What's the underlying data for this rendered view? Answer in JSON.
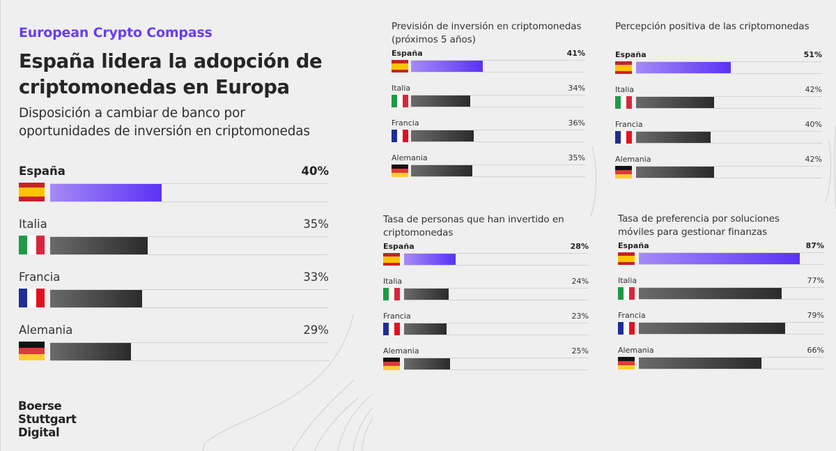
{
  "header": {
    "brand": "European Crypto Compass",
    "headline_line1": "España lidera la adopción de",
    "headline_line2": "criptomonedas en Europa",
    "subtitle_line1": "Disposición a cambiar de banco por",
    "subtitle_line2": "oportunidades de inversión en criptomonedas"
  },
  "logo": {
    "line1": "Boerse",
    "line2": "Stuttgart",
    "line3": "Digital"
  },
  "colors": {
    "brand": "#6a3cf0",
    "highlight_bar_start": "#a58af6",
    "highlight_bar_end": "#5b32f5",
    "other_bar_start": "#6a6a6a",
    "other_bar_end": "#2b2b2b",
    "background": "#efefef"
  },
  "chart_data": [
    {
      "id": "cambiar-banco",
      "type": "bar",
      "orientation": "horizontal",
      "title": "Disposición a cambiar de banco por oportunidades de inversión en criptomonedas",
      "categories": [
        "España",
        "Italia",
        "Francia",
        "Alemania"
      ],
      "flags": [
        "es",
        "it",
        "fr",
        "de"
      ],
      "values": [
        40,
        35,
        33,
        29
      ],
      "labels": [
        "40%",
        "35%",
        "33%",
        "29%"
      ],
      "highlight": "España",
      "xlim": [
        0,
        100
      ],
      "unit": "%"
    },
    {
      "id": "prevision-inversion",
      "type": "bar",
      "orientation": "horizontal",
      "title_line1": "Previsión de inversión en criptomonedas",
      "title_line2": "(próximos 5 años)",
      "categories": [
        "España",
        "Italia",
        "Francia",
        "Alemania"
      ],
      "flags": [
        "es",
        "it",
        "fr",
        "de"
      ],
      "values": [
        41,
        34,
        36,
        35
      ],
      "labels": [
        "41%",
        "34%",
        "36%",
        "35%"
      ],
      "highlight": "España",
      "xlim": [
        0,
        100
      ],
      "unit": "%"
    },
    {
      "id": "percepcion-positiva",
      "type": "bar",
      "orientation": "horizontal",
      "title_line1": "Percepción positiva de las criptomonedas",
      "title_line2": "",
      "categories": [
        "España",
        "Italia",
        "Francia",
        "Alemania"
      ],
      "flags": [
        "es",
        "it",
        "fr",
        "de"
      ],
      "values": [
        51,
        42,
        40,
        42
      ],
      "labels": [
        "51%",
        "42%",
        "40%",
        "42%"
      ],
      "highlight": "España",
      "xlim": [
        0,
        100
      ],
      "unit": "%"
    },
    {
      "id": "han-invertido",
      "type": "bar",
      "orientation": "horizontal",
      "title_line1": "Tasa de personas que han invertido en",
      "title_line2": "criptomonedas",
      "categories": [
        "España",
        "Italia",
        "Francia",
        "Alemania"
      ],
      "flags": [
        "es",
        "it",
        "fr",
        "de"
      ],
      "values": [
        28,
        24,
        23,
        25
      ],
      "labels": [
        "28%",
        "24%",
        "23%",
        "25%"
      ],
      "highlight": "España",
      "xlim": [
        0,
        100
      ],
      "unit": "%"
    },
    {
      "id": "soluciones-moviles",
      "type": "bar",
      "orientation": "horizontal",
      "title_line1": "Tasa de preferencia por soluciones",
      "title_line2": "móviles para gestionar finanzas",
      "categories": [
        "España",
        "Italia",
        "Francia",
        "Alemania"
      ],
      "flags": [
        "es",
        "it",
        "fr",
        "de"
      ],
      "values": [
        87,
        77,
        79,
        66
      ],
      "labels": [
        "87%",
        "77%",
        "79%",
        "66%"
      ],
      "highlight": "España",
      "xlim": [
        0,
        100
      ],
      "unit": "%"
    }
  ]
}
